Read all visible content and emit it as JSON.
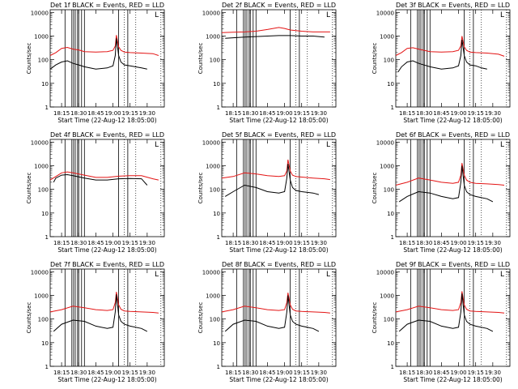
{
  "chart_data": {
    "type": "line",
    "ylabel": "Counts/sec",
    "xlabel": "Start Time (22-Aug-12 18:05:00)",
    "x_ticks": [
      "18:15",
      "18:30",
      "18:45",
      "19:00",
      "19:15",
      "19:30"
    ],
    "y_ticks": [
      "1",
      "10",
      "100",
      "1000",
      "10000"
    ],
    "y_scale": "log",
    "ylim": [
      1,
      13000
    ],
    "xlim_minutes_after_start": [
      0,
      100
    ],
    "grid": false,
    "series_colors": {
      "events": "#000000",
      "lld": "#e31414"
    },
    "legend_marker": "L",
    "vertical_markers_min": [
      13,
      19,
      20.5,
      22,
      24,
      25,
      27.5,
      30,
      60,
      68
    ],
    "dotted_markers_min": [
      65,
      75,
      97
    ],
    "panels": [
      {
        "title": "Det 1f BLACK = Events, RED = LLD",
        "lld": {
          "x": [
            0,
            5,
            10,
            15,
            20,
            25,
            30,
            40,
            50,
            55,
            57,
            58,
            60,
            62,
            65,
            70,
            80,
            90,
            95
          ],
          "y": [
            150,
            200,
            300,
            330,
            280,
            260,
            220,
            210,
            220,
            250,
            380,
            1100,
            350,
            250,
            210,
            200,
            190,
            180,
            150
          ]
        },
        "events": {
          "x": [
            0,
            5,
            10,
            15,
            20,
            25,
            30,
            40,
            50,
            55,
            57,
            58,
            60,
            62,
            65,
            70,
            80,
            85
          ],
          "y": [
            40,
            60,
            80,
            90,
            70,
            60,
            50,
            40,
            45,
            55,
            150,
            800,
            150,
            80,
            60,
            55,
            45,
            40
          ]
        }
      },
      {
        "title": "Det 2f BLACK = Events, RED = LLD",
        "lld": {
          "x": [
            0,
            10,
            20,
            30,
            40,
            50,
            55,
            60,
            70,
            80,
            90,
            95
          ],
          "y": [
            1400,
            1450,
            1500,
            1600,
            1900,
            2300,
            2100,
            1800,
            1600,
            1500,
            1500,
            1500
          ]
        },
        "events": {
          "x": [
            3,
            10,
            20,
            30,
            40,
            50,
            60,
            70,
            80,
            90
          ],
          "y": [
            800,
            850,
            900,
            950,
            1000,
            1050,
            1050,
            1000,
            1000,
            900
          ]
        }
      },
      {
        "title": "Det 3f BLACK = Events, RED = LLD",
        "lld": {
          "x": [
            0,
            5,
            10,
            15,
            20,
            30,
            40,
            50,
            55,
            57,
            58,
            60,
            62,
            65,
            70,
            80,
            90,
            95
          ],
          "y": [
            150,
            200,
            300,
            320,
            280,
            220,
            210,
            220,
            250,
            380,
            1000,
            350,
            250,
            210,
            200,
            190,
            170,
            140
          ]
        },
        "events": {
          "x": [
            2,
            5,
            10,
            15,
            20,
            30,
            40,
            50,
            55,
            57,
            58,
            60,
            62,
            65,
            70,
            75,
            80
          ],
          "y": [
            30,
            50,
            80,
            90,
            70,
            50,
            40,
            45,
            55,
            150,
            700,
            150,
            80,
            60,
            55,
            45,
            40
          ]
        }
      },
      {
        "title": "Det 4f BLACK = Events, RED = LLD",
        "lld": {
          "x": [
            0,
            5,
            10,
            15,
            20,
            30,
            40,
            50,
            60,
            70,
            80,
            90,
            95
          ],
          "y": [
            250,
            350,
            500,
            550,
            500,
            400,
            320,
            320,
            360,
            380,
            380,
            280,
            250
          ]
        },
        "events": {
          "x": [
            3,
            5,
            10,
            15,
            20,
            30,
            40,
            50,
            60,
            70,
            80,
            85
          ],
          "y": [
            200,
            300,
            400,
            420,
            380,
            300,
            250,
            250,
            280,
            290,
            280,
            150
          ]
        }
      },
      {
        "title": "Det 5f BLACK = Events, RED = LLD",
        "lld": {
          "x": [
            0,
            10,
            20,
            30,
            40,
            50,
            55,
            57,
            58,
            60,
            62,
            65,
            70,
            80,
            90,
            95
          ],
          "y": [
            300,
            350,
            500,
            450,
            380,
            350,
            380,
            600,
            1800,
            600,
            400,
            350,
            330,
            300,
            280,
            260
          ]
        },
        "events": {
          "x": [
            3,
            10,
            20,
            30,
            40,
            50,
            55,
            57,
            58,
            60,
            62,
            65,
            70,
            80,
            85
          ],
          "y": [
            50,
            80,
            150,
            120,
            80,
            70,
            80,
            300,
            1200,
            250,
            120,
            90,
            80,
            70,
            60
          ]
        }
      },
      {
        "title": "Det 6f BLACK = Events, RED = LLD",
        "lld": {
          "x": [
            0,
            10,
            20,
            30,
            40,
            50,
            55,
            57,
            58,
            60,
            62,
            65,
            70,
            80,
            90,
            95
          ],
          "y": [
            150,
            200,
            300,
            250,
            200,
            180,
            200,
            400,
            1300,
            400,
            250,
            200,
            180,
            170,
            160,
            150
          ]
        },
        "events": {
          "x": [
            3,
            10,
            20,
            30,
            40,
            50,
            55,
            57,
            58,
            60,
            62,
            65,
            70,
            80,
            85
          ],
          "y": [
            30,
            50,
            80,
            70,
            50,
            40,
            45,
            200,
            1000,
            150,
            80,
            60,
            50,
            40,
            30
          ]
        }
      },
      {
        "title": "Det 7f BLACK = Events, RED = LLD",
        "lld": {
          "x": [
            0,
            10,
            20,
            30,
            40,
            50,
            55,
            57,
            58,
            60,
            62,
            65,
            70,
            80,
            90,
            95
          ],
          "y": [
            200,
            250,
            350,
            300,
            250,
            230,
            250,
            500,
            1400,
            400,
            260,
            220,
            210,
            200,
            190,
            180
          ]
        },
        "events": {
          "x": [
            3,
            10,
            20,
            30,
            40,
            50,
            55,
            57,
            58,
            60,
            62,
            65,
            70,
            80,
            85
          ],
          "y": [
            30,
            60,
            90,
            80,
            50,
            40,
            45,
            200,
            1100,
            150,
            80,
            60,
            50,
            40,
            30
          ]
        }
      },
      {
        "title": "Det 8f BLACK = Events, RED = LLD",
        "lld": {
          "x": [
            0,
            10,
            20,
            30,
            40,
            50,
            55,
            57,
            58,
            60,
            62,
            65,
            70,
            80,
            90,
            95
          ],
          "y": [
            200,
            250,
            350,
            300,
            250,
            230,
            250,
            500,
            1300,
            400,
            260,
            220,
            210,
            200,
            190,
            180
          ]
        },
        "events": {
          "x": [
            3,
            10,
            20,
            30,
            40,
            50,
            55,
            57,
            58,
            60,
            62,
            65,
            70,
            80,
            85
          ],
          "y": [
            30,
            60,
            90,
            80,
            50,
            40,
            45,
            200,
            1000,
            150,
            80,
            60,
            50,
            40,
            30
          ]
        }
      },
      {
        "title": "Det 9f BLACK = Events, RED = LLD",
        "lld": {
          "x": [
            0,
            10,
            20,
            30,
            40,
            50,
            55,
            57,
            58,
            60,
            62,
            65,
            70,
            80,
            90,
            95
          ],
          "y": [
            200,
            250,
            350,
            300,
            250,
            230,
            250,
            500,
            1500,
            400,
            260,
            220,
            210,
            200,
            190,
            180
          ]
        },
        "events": {
          "x": [
            3,
            10,
            20,
            30,
            40,
            50,
            55,
            57,
            58,
            60,
            62,
            65,
            70,
            80,
            85
          ],
          "y": [
            30,
            60,
            90,
            80,
            50,
            40,
            45,
            200,
            1200,
            150,
            80,
            60,
            50,
            40,
            30
          ]
        }
      }
    ]
  }
}
